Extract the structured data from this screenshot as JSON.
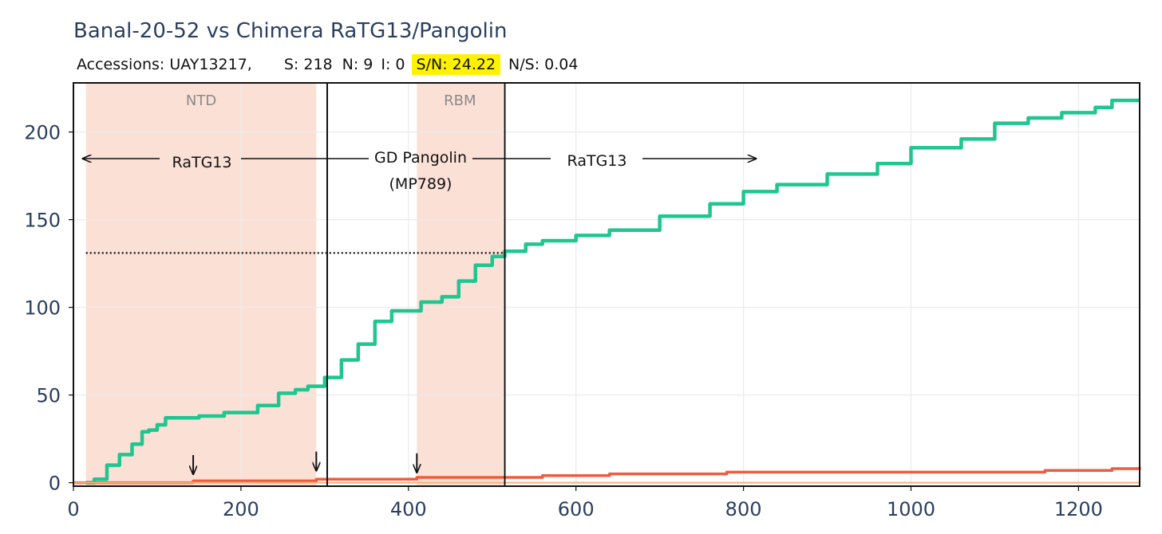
{
  "title": "Banal-20-52 vs Chimera RaTG13/Pangolin",
  "stats": {
    "accessions": "Accessions: UAY13217,",
    "s": "S: 218",
    "n": "N: 9",
    "i": "I: 0",
    "sn": "S/N: 24.22",
    "ns": "N/S: 0.04"
  },
  "colors": {
    "synonymous": "#1fc690",
    "nonsynonymous": "#ef5c3d",
    "region_fill": "#fbe0d6",
    "highlight": "#fff200"
  },
  "chart_data": {
    "type": "line",
    "xlim": [
      0,
      1273
    ],
    "ylim": [
      -2,
      228
    ],
    "x_ticks": [
      0,
      200,
      400,
      600,
      800,
      1000,
      1200
    ],
    "y_ticks": [
      0,
      50,
      100,
      150,
      200
    ],
    "grid": true,
    "regions": [
      {
        "label": "NTD",
        "x0": 15,
        "x1": 290
      },
      {
        "label": "RBM",
        "x0": 410,
        "x1": 513
      }
    ],
    "segments": [
      {
        "label": "RaTG13",
        "x0": 15,
        "x1": 303
      },
      {
        "label": "GD Pangolin",
        "label2": "(MP789)",
        "x0": 303,
        "x1": 515
      },
      {
        "label": "RaTG13",
        "x0": 515,
        "x1": 815
      }
    ],
    "reference_line": {
      "y": 131,
      "x0": 15,
      "x1": 515
    },
    "markers": [
      {
        "x": 143,
        "y": 3
      },
      {
        "x": 290,
        "y": 5
      },
      {
        "x": 410,
        "y": 4
      }
    ],
    "series": [
      {
        "name": "S",
        "x": [
          15,
          25,
          40,
          55,
          70,
          82,
          90,
          100,
          110,
          125,
          150,
          180,
          220,
          245,
          265,
          280,
          300,
          320,
          340,
          360,
          380,
          400,
          415,
          440,
          460,
          480,
          500,
          515,
          540,
          560,
          600,
          640,
          700,
          760,
          800,
          840,
          900,
          960,
          1000,
          1060,
          1100,
          1140,
          1180,
          1220,
          1240,
          1273
        ],
        "y": [
          0,
          2,
          10,
          16,
          22,
          29,
          30,
          33,
          37,
          37,
          38,
          40,
          44,
          51,
          53,
          55,
          60,
          70,
          79,
          92,
          98,
          98,
          103,
          106,
          115,
          124,
          129,
          132,
          136,
          138,
          141,
          144,
          152,
          159,
          166,
          170,
          176,
          182,
          191,
          196,
          205,
          208,
          211,
          214,
          218,
          218
        ]
      },
      {
        "name": "N",
        "x": [
          0,
          143,
          290,
          410,
          510,
          560,
          640,
          780,
          1080,
          1160,
          1240,
          1273
        ],
        "y": [
          0,
          1,
          2,
          3,
          3,
          4,
          5,
          6,
          6,
          7,
          8,
          9
        ]
      },
      {
        "name": "I",
        "x": [
          0,
          1273
        ],
        "y": [
          0,
          0
        ]
      }
    ]
  }
}
